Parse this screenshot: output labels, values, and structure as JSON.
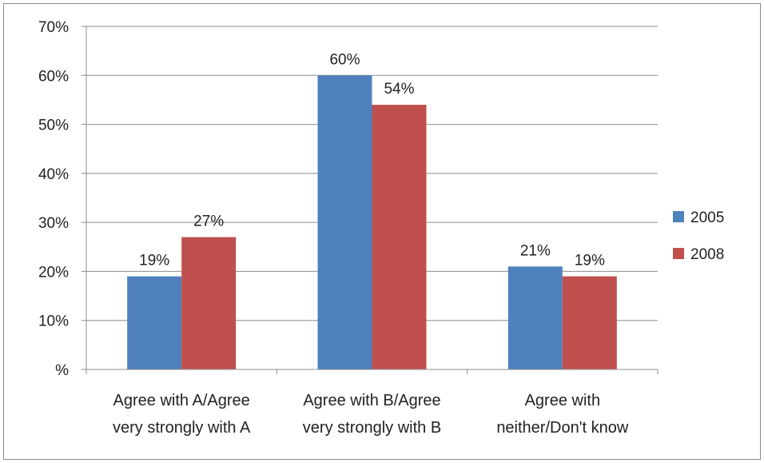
{
  "chart_data": {
    "type": "bar",
    "categories": [
      [
        "Agree with A/Agree",
        "very strongly with A"
      ],
      [
        "Agree with B/Agree",
        "very strongly with B"
      ],
      [
        "Agree with",
        "neither/Don't know"
      ]
    ],
    "series": [
      {
        "name": "2005",
        "values": [
          19,
          60,
          21
        ],
        "labels": [
          "19%",
          "60%",
          "21%"
        ],
        "color": "#4F81BD"
      },
      {
        "name": "2008",
        "values": [
          27,
          54,
          19
        ],
        "labels": [
          "27%",
          "54%",
          "19%"
        ],
        "color": "#C0504D"
      }
    ],
    "ylim": [
      0,
      70
    ],
    "yticks": [
      0,
      10,
      20,
      30,
      40,
      50,
      60,
      70
    ],
    "ytick_labels": [
      "%",
      "10%",
      "20%",
      "30%",
      "40%",
      "50%",
      "60%",
      "70%"
    ],
    "grid": true,
    "legend": "right",
    "title": "",
    "xlabel": "",
    "ylabel": ""
  }
}
